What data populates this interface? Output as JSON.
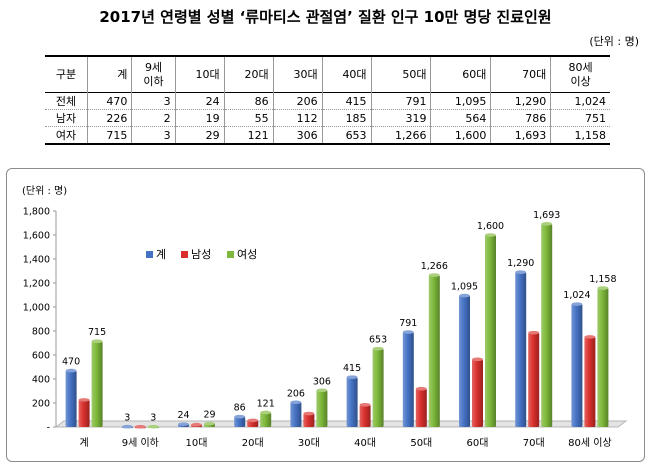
{
  "title": "2017년 연령별 성별 ‘류마티스 관절염’ 질환 인구 10만 명당 진료인원",
  "unit_label": "(단위 : 명)",
  "table": {
    "headers": [
      "구분",
      "계",
      "9세\n이하",
      "10대",
      "20대",
      "30대",
      "40대",
      "50대",
      "60대",
      "70대",
      "80세\n이상"
    ],
    "rows": [
      [
        "전체",
        "470",
        "3",
        "24",
        "86",
        "206",
        "415",
        "791",
        "1,095",
        "1,290",
        "1,024"
      ],
      [
        "남자",
        "226",
        "2",
        "19",
        "55",
        "112",
        "185",
        "319",
        "564",
        "786",
        "751"
      ],
      [
        "여자",
        "715",
        "3",
        "29",
        "121",
        "306",
        "653",
        "1,266",
        "1,600",
        "1,693",
        "1,158"
      ]
    ]
  },
  "chart_data": {
    "type": "bar",
    "ylabel": "(단위 : 명)",
    "ylim": [
      0,
      1800
    ],
    "yticks": [
      "-",
      "200",
      "400",
      "600",
      "800",
      "1,000",
      "1,200",
      "1,400",
      "1,600",
      "1,800"
    ],
    "categories": [
      "계",
      "9세 이하",
      "10대",
      "20대",
      "30대",
      "40대",
      "50대",
      "60대",
      "70대",
      "80세 이상"
    ],
    "series": [
      {
        "name": "계",
        "color": "#4472C4",
        "values": [
          470,
          3,
          24,
          86,
          206,
          415,
          791,
          1095,
          1290,
          1024
        ],
        "labels": [
          "470",
          "3",
          "24",
          "86",
          "206",
          "415",
          "791",
          "1,095",
          "1,290",
          "1,024"
        ]
      },
      {
        "name": "남성",
        "color": "#D9302C",
        "values": [
          226,
          2,
          19,
          55,
          112,
          185,
          319,
          564,
          786,
          751
        ],
        "labels": []
      },
      {
        "name": "여성",
        "color": "#7DB83A",
        "values": [
          715,
          3,
          29,
          121,
          306,
          653,
          1266,
          1600,
          1693,
          1158
        ],
        "labels": [
          "715",
          "3",
          "29",
          "121",
          "306",
          "653",
          "1,266",
          "1,600",
          "1,693",
          "1,158"
        ]
      }
    ],
    "legend_position": "top-left",
    "grid": false
  }
}
